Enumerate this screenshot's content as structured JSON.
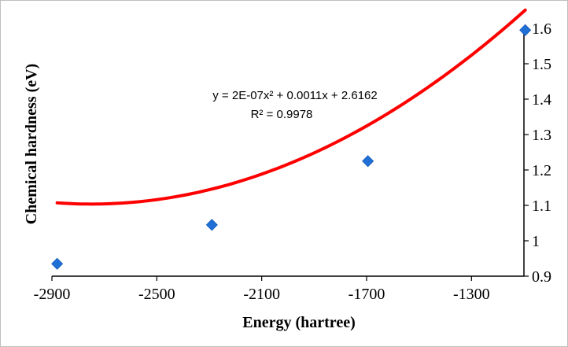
{
  "chart_data": {
    "type": "scatter",
    "title": "",
    "xlabel": "Energy (hartree)",
    "ylabel": "Chemical hardness (eV)",
    "xlim": [
      -2900,
      -1100
    ],
    "ylim": [
      0.9,
      1.6
    ],
    "xticks": [
      -2900,
      -2500,
      -2100,
      -1700,
      -1300
    ],
    "yticks": [
      0.9,
      1,
      1.1,
      1.2,
      1.3,
      1.4,
      1.5,
      1.6
    ],
    "series": [
      {
        "x": [
          -2880,
          -2290,
          -1695,
          -1095
        ],
        "y": [
          0.935,
          1.045,
          1.225,
          1.595
        ],
        "marker": "diamond",
        "color": "#1f6fd6"
      }
    ],
    "trendline": {
      "type": "polynomial",
      "coefficients": [
        2e-07,
        0.0011,
        2.6162
      ],
      "x_range": [
        -2880,
        -1095
      ],
      "color": "#ff0000",
      "equation_label": "y = 2E-07x² + 0.0011x + 2.6162",
      "r2_label": "R² = 0.9978"
    },
    "y_axis_position": "right",
    "grid": false,
    "legend": "none"
  }
}
